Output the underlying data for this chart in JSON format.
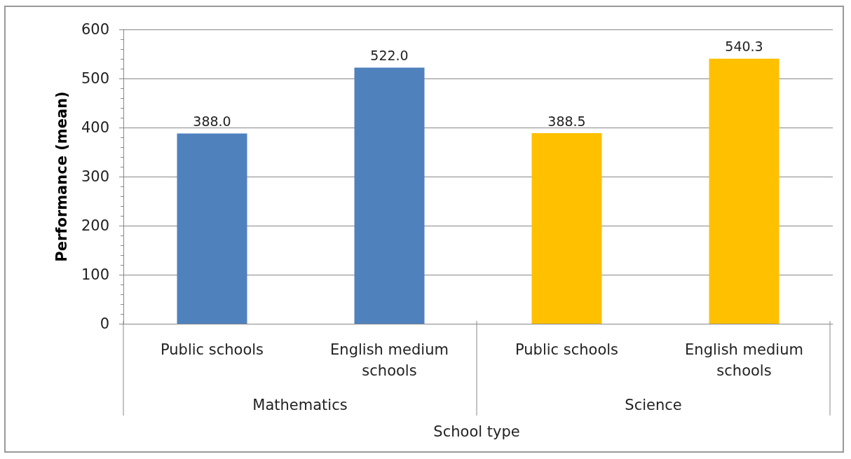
{
  "chart_data": {
    "type": "bar",
    "ylabel": "Performance (mean)",
    "xlabel": "School type",
    "categories": [
      "Public schools",
      "English medium\nschools",
      "Public schools",
      "English medium\nschools"
    ],
    "series": [
      {
        "color": "#4f81bd",
        "values": [
          388.0,
          522.0,
          null,
          null
        ],
        "value_labels": [
          "388.0",
          "522.0",
          null,
          null
        ]
      },
      {
        "color": "#ffc000",
        "values": [
          null,
          null,
          388.5,
          540.3
        ],
        "value_labels": [
          null,
          null,
          "388.5",
          "540.3"
        ]
      }
    ],
    "annotations": [
      "Mathematics",
      "Science"
    ],
    "stacked": true,
    "ylim": [
      0,
      600
    ],
    "yticks": [
      0,
      100,
      200,
      300,
      400,
      500,
      600
    ],
    "grid": "y"
  }
}
